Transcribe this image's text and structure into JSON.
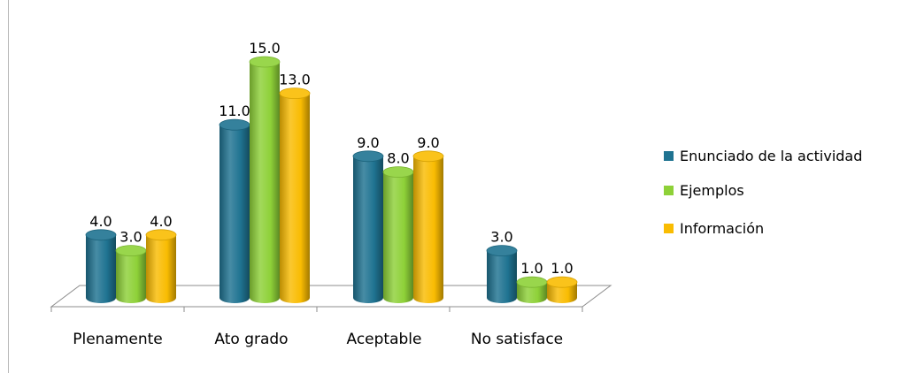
{
  "chart_data": {
    "type": "bar",
    "categories": [
      "Plenamente",
      "Ato grado",
      "Aceptable",
      "No satisface"
    ],
    "series": [
      {
        "name": "Enunciado de la actividad",
        "values": [
          4.0,
          11.0,
          9.0,
          3.0
        ],
        "color": "#1f7391"
      },
      {
        "name": "Ejemplos",
        "values": [
          3.0,
          15.0,
          8.0,
          1.0
        ],
        "color": "#8ed138"
      },
      {
        "name": "Información",
        "values": [
          4.0,
          13.0,
          9.0,
          1.0
        ],
        "color": "#f9bc02"
      }
    ],
    "value_labels": [
      [
        "4.0",
        "11.0",
        "9.0",
        "3.0"
      ],
      [
        "3.0",
        "15.0",
        "8.0",
        "1.0"
      ],
      [
        "4.0",
        "13.0",
        "9.0",
        "1.0"
      ]
    ],
    "ylim": [
      0,
      15
    ],
    "legend_position": "right",
    "grid": false,
    "style": "3d-cylinder"
  }
}
